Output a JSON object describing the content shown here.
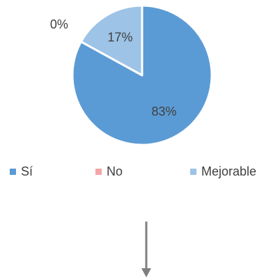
{
  "chart_data": {
    "type": "pie",
    "categories": [
      "Sí",
      "No",
      "Mejorable"
    ],
    "values": [
      83,
      0,
      17
    ],
    "data_labels": [
      "83%",
      "0%",
      "17%"
    ],
    "colors": [
      "#5B9BD5",
      "#F4A6A6",
      "#9DC3E6"
    ],
    "legend_position": "bottom",
    "start_angle_deg": 0,
    "direction": "clockwise"
  },
  "decor": {
    "arrow": "down-arrow-icon",
    "arrow_color": "#7F7F7F"
  }
}
